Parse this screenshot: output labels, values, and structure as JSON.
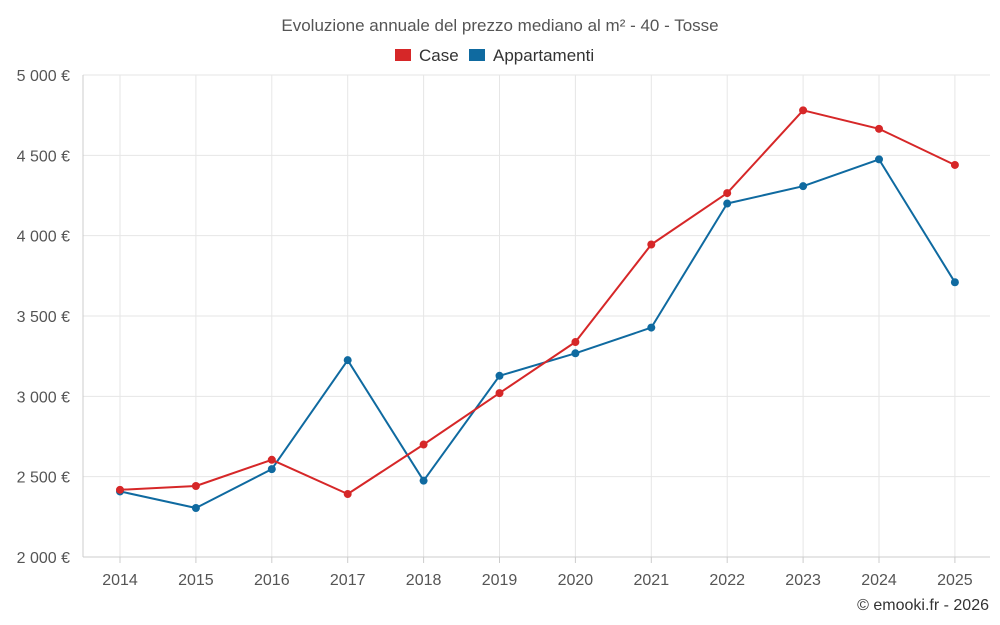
{
  "chart_data": {
    "type": "line",
    "title": "Evoluzione annuale del prezzo mediano al m² - 40 - Tosse",
    "x": [
      "2014",
      "2015",
      "2016",
      "2017",
      "2018",
      "2019",
      "2020",
      "2021",
      "2022",
      "2023",
      "2024",
      "2025"
    ],
    "ylim": [
      2000,
      5000
    ],
    "yticks": [
      2000,
      2500,
      3000,
      3500,
      4000,
      4500,
      5000
    ],
    "ytick_labels": [
      "2 000 €",
      "2 500 €",
      "3 000 €",
      "3 500 €",
      "4 000 €",
      "4 500 €",
      "5 000 €"
    ],
    "grid": true,
    "legend_position": "top-center",
    "series": [
      {
        "name": "Case",
        "color": "#d62728",
        "values": [
          2418,
          2442,
          2605,
          2392,
          2700,
          3020,
          3338,
          3945,
          4265,
          4780,
          4665,
          4440
        ]
      },
      {
        "name": "Appartamenti",
        "color": "#0f6aa0",
        "values": [
          2408,
          2305,
          2547,
          3225,
          2475,
          3128,
          3268,
          3428,
          4200,
          4308,
          4475,
          3710
        ]
      }
    ]
  },
  "credit": "© emooki.fr - 2026"
}
